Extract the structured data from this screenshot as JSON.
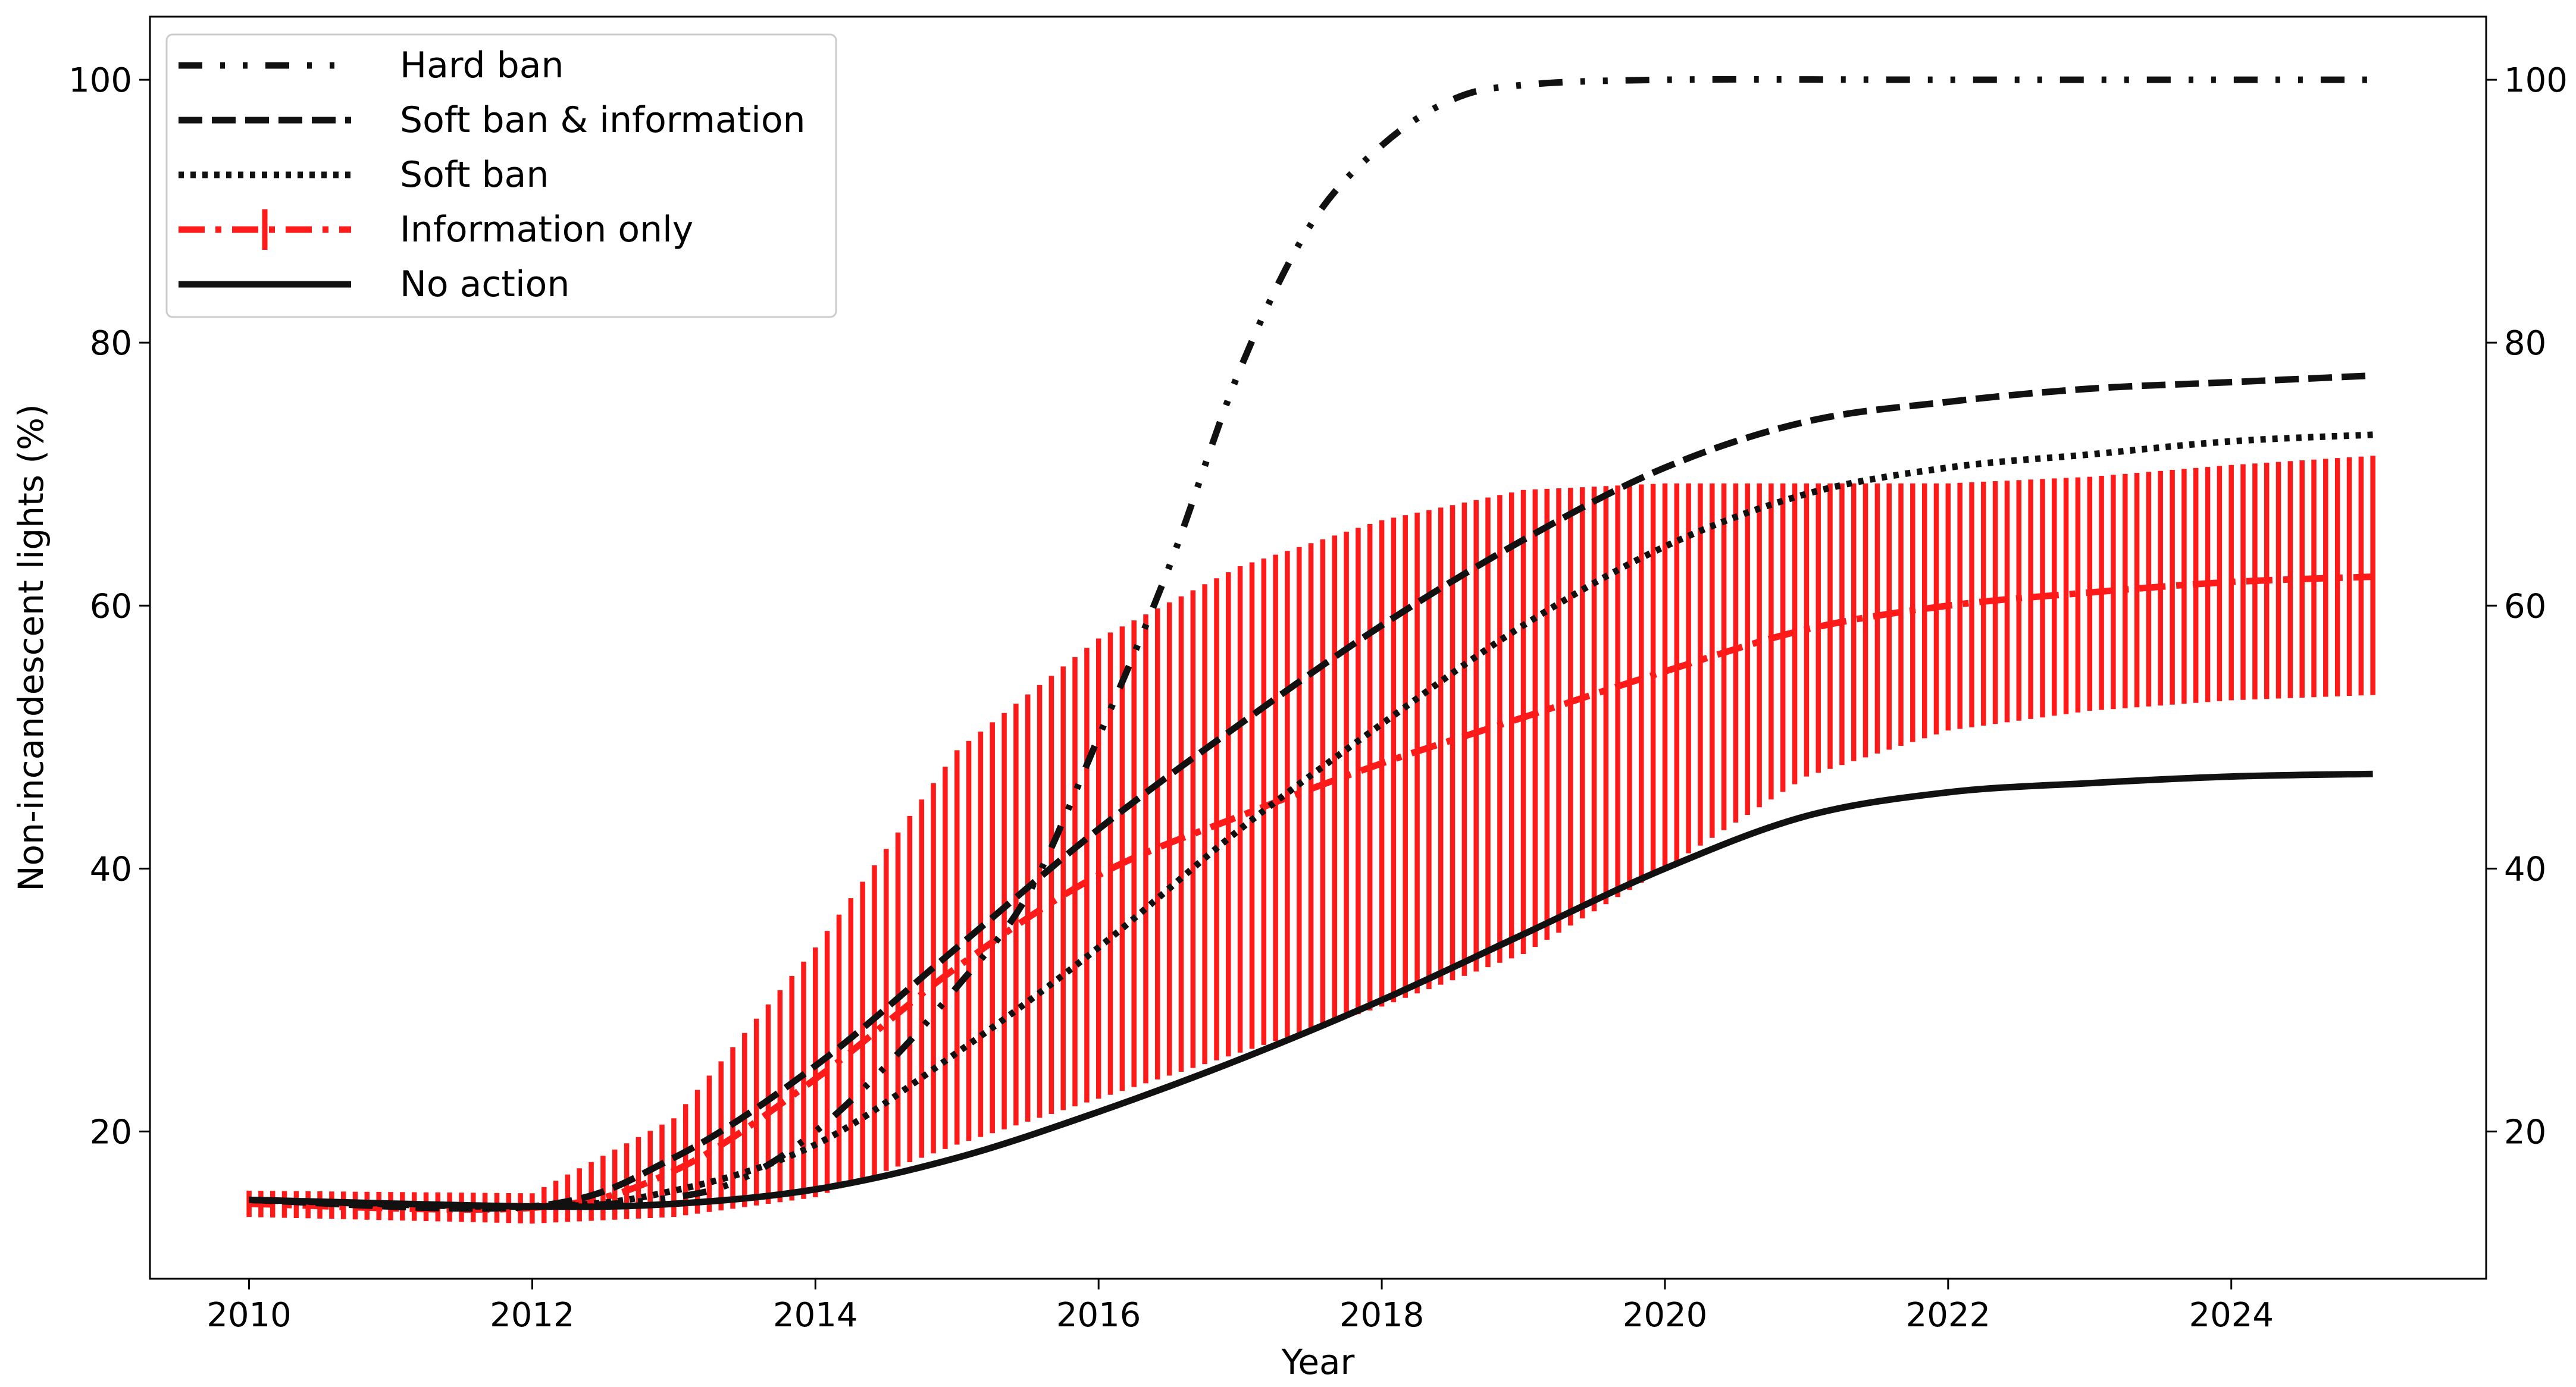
{
  "chart_data": {
    "type": "line",
    "xlabel": "Year",
    "ylabel": "Non-incandescent lights (%)",
    "xlim": [
      2009.3,
      2025.8
    ],
    "ylim": [
      8.8,
      104.8
    ],
    "xticks": [
      2010,
      2012,
      2014,
      2016,
      2018,
      2020,
      2022,
      2024
    ],
    "yticks": [
      20,
      40,
      60,
      80,
      100
    ],
    "secondary_y_axis": true,
    "legend_position": "top-left",
    "series": [
      {
        "name": "Hard ban",
        "style": "dash-dot-dot",
        "color": "#111111",
        "points": [
          [
            2010,
            14.8
          ],
          [
            2012,
            14.3
          ],
          [
            2013,
            15
          ],
          [
            2013.5,
            16.5
          ],
          [
            2014,
            20
          ],
          [
            2014.5,
            25
          ],
          [
            2015,
            31
          ],
          [
            2015.5,
            38
          ],
          [
            2016,
            50
          ],
          [
            2016.5,
            63
          ],
          [
            2017,
            78
          ],
          [
            2017.5,
            89
          ],
          [
            2018,
            95
          ],
          [
            2018.5,
            98.5
          ],
          [
            2019,
            99.6
          ],
          [
            2020,
            100
          ],
          [
            2022,
            100
          ],
          [
            2025,
            100
          ]
        ]
      },
      {
        "name": "Soft ban & information",
        "style": "dashed",
        "color": "#111111",
        "points": [
          [
            2010,
            14.8
          ],
          [
            2012,
            14.3
          ],
          [
            2013,
            18
          ],
          [
            2014,
            25
          ],
          [
            2015,
            34
          ],
          [
            2016,
            43
          ],
          [
            2017,
            51
          ],
          [
            2018,
            58.5
          ],
          [
            2019,
            65
          ],
          [
            2020,
            70.5
          ],
          [
            2021,
            74
          ],
          [
            2022,
            75.5
          ],
          [
            2023,
            76.5
          ],
          [
            2024,
            77
          ],
          [
            2025,
            77.5
          ]
        ]
      },
      {
        "name": "Soft ban",
        "style": "dotted",
        "color": "#111111",
        "points": [
          [
            2010,
            14.8
          ],
          [
            2012,
            14.3
          ],
          [
            2013,
            15.5
          ],
          [
            2014,
            19
          ],
          [
            2015,
            26
          ],
          [
            2016,
            34
          ],
          [
            2017,
            43
          ],
          [
            2018,
            51
          ],
          [
            2019,
            58.5
          ],
          [
            2020,
            64.5
          ],
          [
            2021,
            68.5
          ],
          [
            2022,
            70.5
          ],
          [
            2023,
            71.5
          ],
          [
            2024,
            72.5
          ],
          [
            2025,
            73
          ]
        ]
      },
      {
        "name": "Information only",
        "style": "dash-dot",
        "color": "#ff1a1a",
        "points": [
          [
            2010,
            14.5
          ],
          [
            2012,
            14.2
          ],
          [
            2013,
            17
          ],
          [
            2014,
            24
          ],
          [
            2015,
            32.5
          ],
          [
            2016,
            39.5
          ],
          [
            2017,
            44
          ],
          [
            2018,
            48
          ],
          [
            2019,
            51.5
          ],
          [
            2020,
            55
          ],
          [
            2021,
            58.2
          ],
          [
            2022,
            60
          ],
          [
            2023,
            61
          ],
          [
            2024,
            61.8
          ],
          [
            2025,
            62.2
          ]
        ]
      },
      {
        "name": "No action",
        "style": "solid",
        "color": "#111111",
        "points": [
          [
            2010,
            14.8
          ],
          [
            2012,
            14.3
          ],
          [
            2013,
            14.5
          ],
          [
            2014,
            15.6
          ],
          [
            2015,
            18
          ],
          [
            2016,
            21.5
          ],
          [
            2017,
            25.5
          ],
          [
            2018,
            30
          ],
          [
            2019,
            35
          ],
          [
            2020,
            40
          ],
          [
            2021,
            44
          ],
          [
            2022,
            45.8
          ],
          [
            2023,
            46.5
          ],
          [
            2024,
            47
          ],
          [
            2025,
            47.2
          ]
        ]
      }
    ],
    "error_band": {
      "series": "Information only",
      "color": "#ff1a1a",
      "lower": [
        [
          2010,
          13.5
        ],
        [
          2012,
          13
        ],
        [
          2013,
          13.5
        ],
        [
          2014,
          15
        ],
        [
          2015,
          19
        ],
        [
          2016,
          22.5
        ],
        [
          2017,
          26
        ],
        [
          2018,
          29.5
        ],
        [
          2019,
          33.5
        ],
        [
          2020,
          40
        ],
        [
          2021,
          47
        ],
        [
          2022,
          50.5
        ],
        [
          2023,
          52
        ],
        [
          2024,
          52.8
        ],
        [
          2025,
          53.2
        ]
      ],
      "upper": [
        [
          2010,
          15.5
        ],
        [
          2012,
          15.3
        ],
        [
          2013,
          21
        ],
        [
          2014,
          34
        ],
        [
          2015,
          49
        ],
        [
          2016,
          57.5
        ],
        [
          2017,
          63
        ],
        [
          2018,
          66.5
        ],
        [
          2019,
          68.8
        ],
        [
          2020,
          69.3
        ],
        [
          2021,
          69.3
        ],
        [
          2022,
          69.3
        ],
        [
          2023,
          69.8
        ],
        [
          2024,
          70.7
        ],
        [
          2025,
          71.4
        ]
      ]
    }
  }
}
